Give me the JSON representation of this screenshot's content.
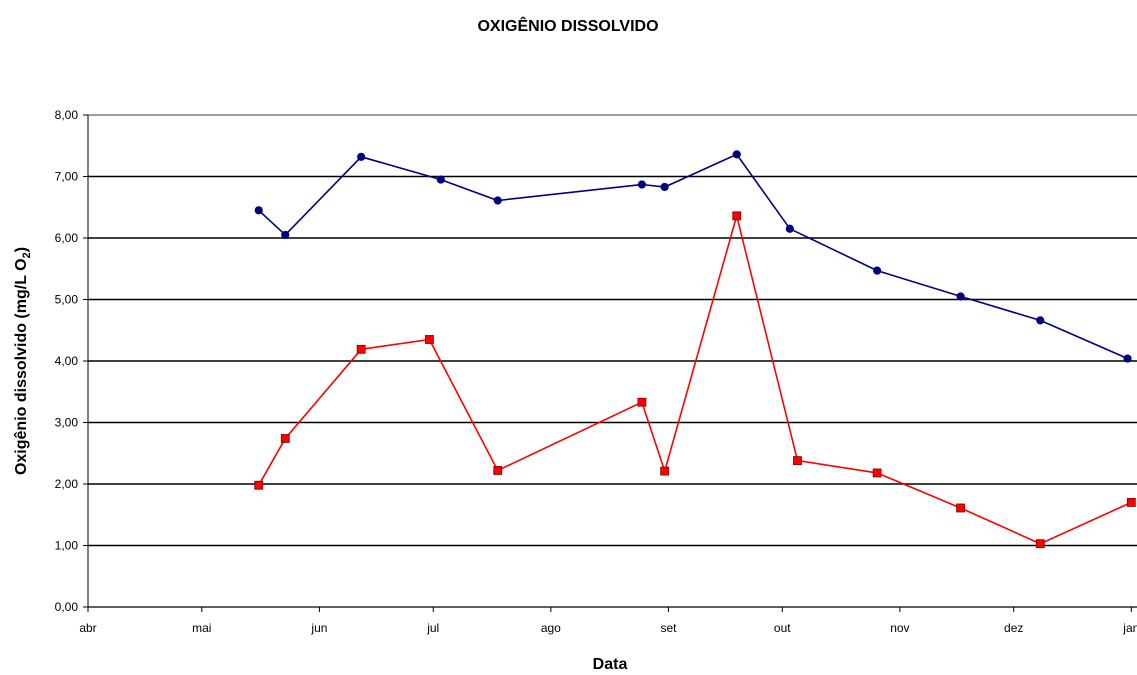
{
  "chart_data": {
    "type": "line",
    "title": "OXIGÊNIO DISSOLVIDO",
    "xlabel": "Data",
    "ylabel": {
      "prefix": "Oxigênio dissolvido (mg/L O",
      "subscript": "2",
      "suffix": ")"
    },
    "ylim": [
      0,
      8
    ],
    "y_ticks": [
      "0,00",
      "1,00",
      "2,00",
      "3,00",
      "4,00",
      "5,00",
      "6,00",
      "7,00",
      "8,00"
    ],
    "x_ticks": [
      {
        "date": "2000-04-01",
        "label": "abr"
      },
      {
        "date": "2000-05-01",
        "label": "mai"
      },
      {
        "date": "2000-06-01",
        "label": "jun"
      },
      {
        "date": "2000-07-01",
        "label": "jul"
      },
      {
        "date": "2000-08-01",
        "label": "ago"
      },
      {
        "date": "2000-09-01",
        "label": "set"
      },
      {
        "date": "2000-10-01",
        "label": "out"
      },
      {
        "date": "2000-11-01",
        "label": "nov"
      },
      {
        "date": "2000-12-01",
        "label": "dez"
      },
      {
        "date": "2001-01-01",
        "label": "jan"
      }
    ],
    "grid": {
      "horizontal": true,
      "vertical": false
    },
    "legend": "none",
    "series": [
      {
        "color": "#000080",
        "marker": "circle",
        "points": [
          {
            "x": "2000-05-16",
            "y": 6.45
          },
          {
            "x": "2000-05-23",
            "y": 6.05
          },
          {
            "x": "2000-06-12",
            "y": 7.32
          },
          {
            "x": "2000-07-03",
            "y": 6.95
          },
          {
            "x": "2000-07-18",
            "y": 6.61
          },
          {
            "x": "2000-08-25",
            "y": 6.87
          },
          {
            "x": "2000-08-31",
            "y": 6.83
          },
          {
            "x": "2000-09-19",
            "y": 7.36
          },
          {
            "x": "2000-10-03",
            "y": 6.15
          },
          {
            "x": "2000-10-26",
            "y": 5.47
          },
          {
            "x": "2000-11-17",
            "y": 5.05
          },
          {
            "x": "2000-12-08",
            "y": 4.66
          },
          {
            "x": "2000-12-31",
            "y": 4.04
          }
        ]
      },
      {
        "color": "#ff0000",
        "marker": "square",
        "points": [
          {
            "x": "2000-05-16",
            "y": 1.98
          },
          {
            "x": "2000-05-23",
            "y": 2.74
          },
          {
            "x": "2000-06-12",
            "y": 4.19
          },
          {
            "x": "2000-06-30",
            "y": 4.35
          },
          {
            "x": "2000-07-18",
            "y": 2.22
          },
          {
            "x": "2000-08-25",
            "y": 3.33
          },
          {
            "x": "2000-08-31",
            "y": 2.21
          },
          {
            "x": "2000-09-19",
            "y": 6.36
          },
          {
            "x": "2000-10-05",
            "y": 2.38
          },
          {
            "x": "2000-10-26",
            "y": 2.18
          },
          {
            "x": "2000-11-17",
            "y": 1.61
          },
          {
            "x": "2000-12-08",
            "y": 1.03
          },
          {
            "x": "2001-01-01",
            "y": 1.7
          }
        ]
      }
    ]
  }
}
